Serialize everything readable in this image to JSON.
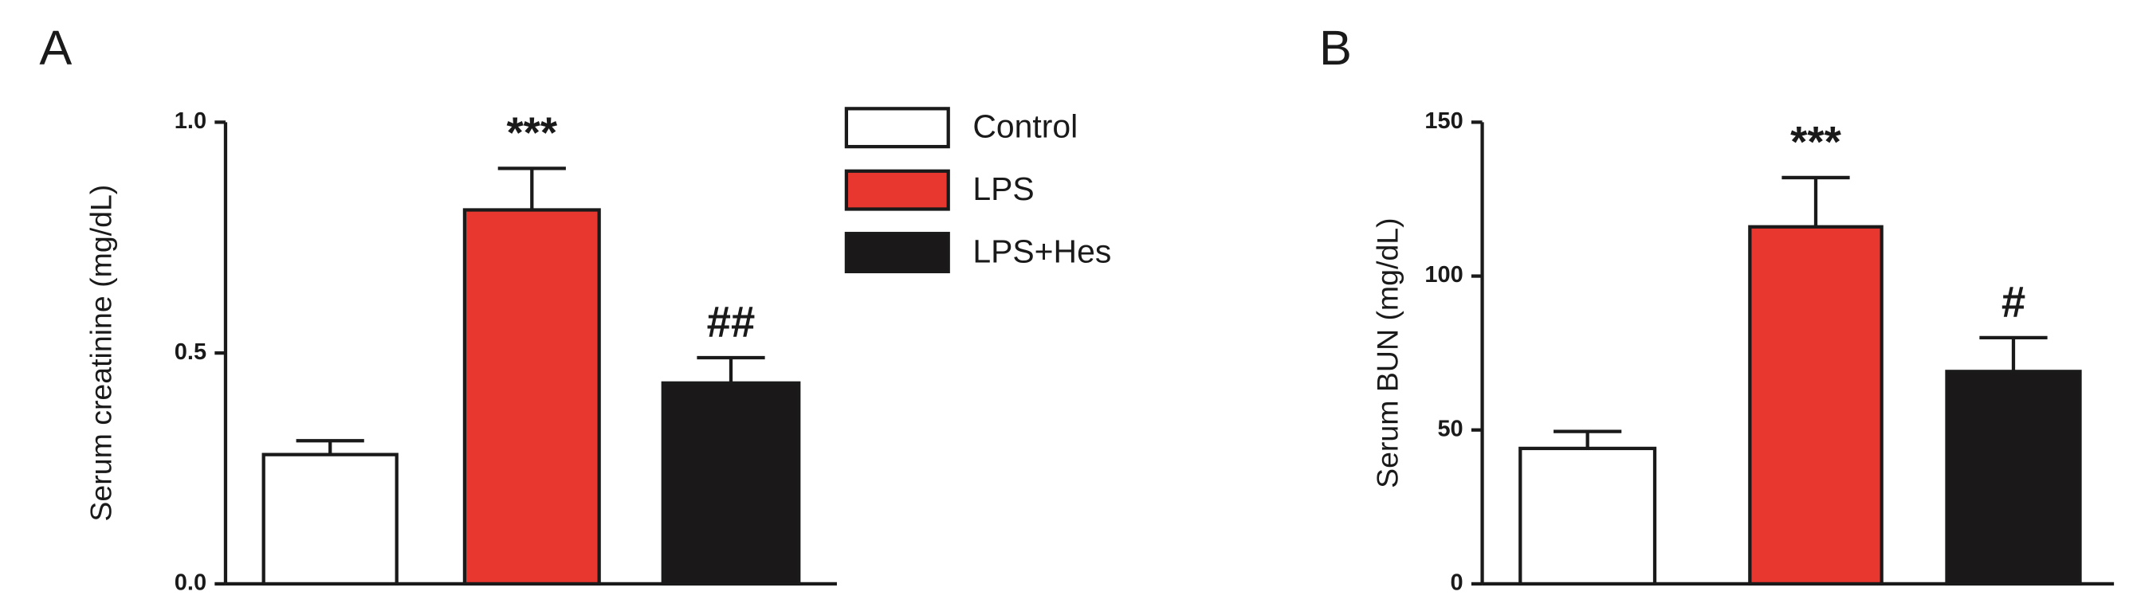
{
  "chart_data": [
    {
      "type": "bar",
      "panel_label": "A",
      "ylabel": "Serum creatinine (mg/dL)",
      "categories": [
        null
      ],
      "ylim": [
        0,
        1
      ],
      "yticks": [
        {
          "value": 0,
          "label": "0.0"
        },
        0.5,
        {
          "value": 1,
          "label": "1.0"
        }
      ],
      "legend": "upper right",
      "series": [
        {
          "name": "Control",
          "color": "#ffffff",
          "values": [
            0.28
          ],
          "errors": [
            0.03
          ]
        },
        {
          "name": "LPS",
          "color": "#e8372f",
          "values": [
            0.81
          ],
          "errors": [
            0.09
          ],
          "annotation": "***"
        },
        {
          "name": "LPS+Hes",
          "color": "#1a1818",
          "values": [
            0.435
          ],
          "errors": [
            0.055
          ],
          "annotation": "##"
        }
      ]
    },
    {
      "type": "bar",
      "panel_label": "B",
      "ylabel": "Serum BUN (mg/dL)",
      "categories": [
        null
      ],
      "ylim": [
        0,
        150
      ],
      "yticks": [
        0,
        50,
        100,
        150
      ],
      "series": [
        {
          "color": "#ffffff",
          "values": [
            44
          ],
          "errors": [
            5.5
          ]
        },
        {
          "color": "#e8372f",
          "values": [
            116
          ],
          "errors": [
            16
          ],
          "annotation": "***"
        },
        {
          "color": "#1a1818",
          "values": [
            69
          ],
          "errors": [
            11
          ],
          "annotation": "#"
        }
      ]
    }
  ]
}
